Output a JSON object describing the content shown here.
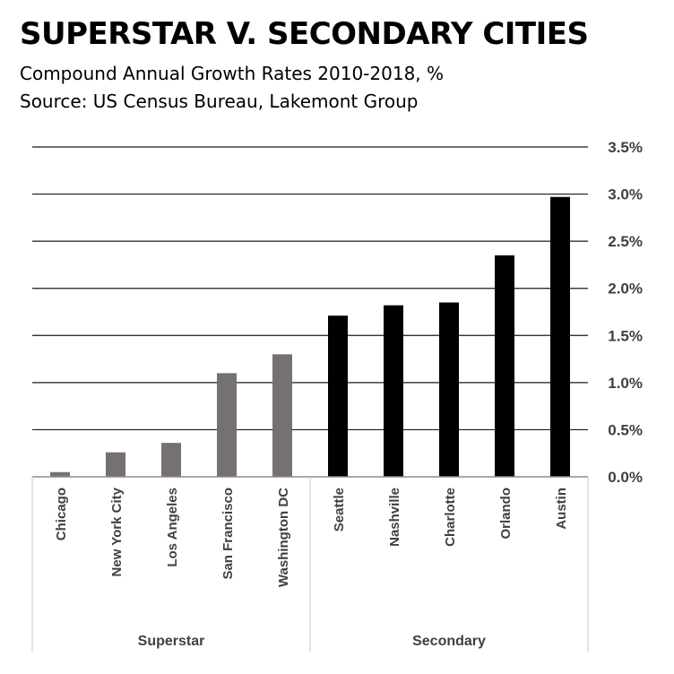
{
  "chart_data": {
    "type": "bar",
    "title": "SUPERSTAR V. SECONDARY CITIES",
    "subtitle": "Compound Annual Growth Rates 2010-2018, %",
    "source": "Source: US Census Bureau, Lakemont Group",
    "categories": [
      "Chicago",
      "New York City",
      "Los Angeles",
      "San Francisco",
      "Washington DC",
      "Seattle",
      "Nashville",
      "Charlotte",
      "Orlando",
      "Austin"
    ],
    "values": [
      0.05,
      0.26,
      0.36,
      1.1,
      1.3,
      1.71,
      1.82,
      1.85,
      2.35,
      2.97
    ],
    "groups": [
      {
        "name": "Superstar",
        "start": 0,
        "end": 4,
        "color": "#767171"
      },
      {
        "name": "Secondary",
        "start": 5,
        "end": 9,
        "color": "#000000"
      }
    ],
    "ylim": [
      0,
      3.5
    ],
    "yticks": [
      0,
      0.5,
      1.0,
      1.5,
      2.0,
      2.5,
      3.0,
      3.5
    ],
    "ytick_labels": [
      "0.0%",
      "0.5%",
      "1.0%",
      "1.5%",
      "2.0%",
      "2.5%",
      "3.0%",
      "3.5%"
    ],
    "y_axis_position": "right",
    "grid": true,
    "legend": "none"
  }
}
